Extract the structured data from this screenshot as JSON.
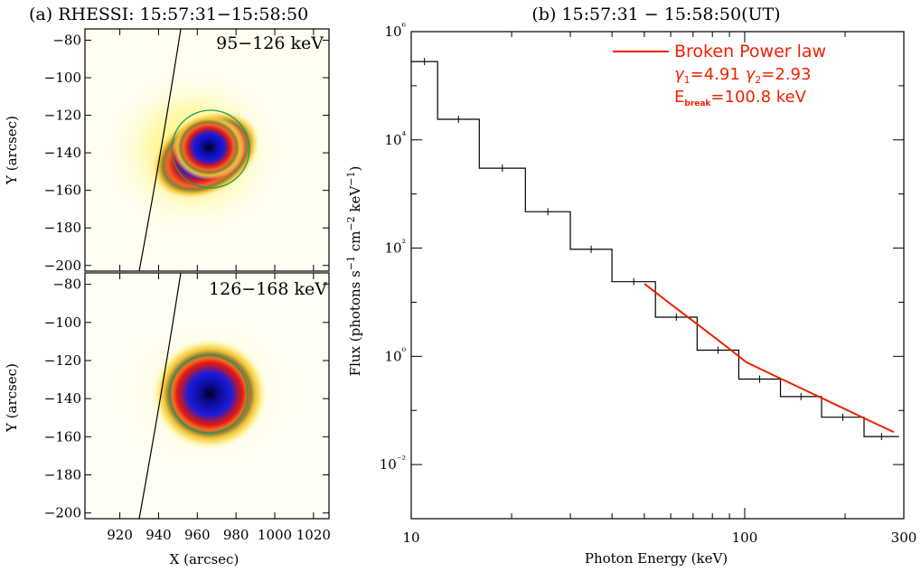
{
  "left": {
    "title": "(a) RHESSI: 15:57:31−15:58:50",
    "xlabel": "X (arcsec)",
    "xticks": [
      "920",
      "940",
      "960",
      "980",
      "1000",
      "1020"
    ],
    "xlim": [
      902,
      1028
    ],
    "ylim": [
      -203,
      -74
    ],
    "panels": [
      {
        "band": "95−126 keV",
        "ylabel": "Y (arcsec)",
        "yticks": [
          "−80",
          "−100",
          "−120",
          "−140",
          "−160",
          "−180",
          "−200"
        ]
      },
      {
        "band": "126−168 keV",
        "ylabel": "Y (arcsec)",
        "yticks": [
          "−80",
          "−100",
          "−120",
          "−140",
          "−160",
          "−180",
          "−200"
        ]
      }
    ]
  },
  "chart_data": {
    "type": "line",
    "title": "(b) 15:57:31 − 15:58:50(UT)",
    "xlabel": "Photon Energy (keV)",
    "ylabel": "Flux (photons s⁻¹ cm⁻² keV⁻¹)",
    "xscale": "log",
    "yscale": "log",
    "xlim": [
      10,
      300
    ],
    "ylim": [
      0.001,
      1000000
    ],
    "xtick_labels": [
      "10",
      "100",
      "300"
    ],
    "ytick_labels": [
      "10⁻²",
      "10⁰",
      "10²",
      "10⁴",
      "10⁶"
    ],
    "series": [
      {
        "style": "step",
        "color": "#000000",
        "bin_edges": [
          10,
          12,
          16,
          22,
          30,
          40,
          54,
          72,
          96,
          128,
          170,
          228,
          290
        ],
        "values": [
          280000,
          24000,
          3000,
          470,
          95,
          24,
          5.3,
          1.3,
          0.38,
          0.18,
          0.075,
          0.033
        ]
      },
      {
        "name": "Broken Power law",
        "color": "#ee2200",
        "x": [
          50,
          60,
          70,
          80,
          90,
          100.8,
          120,
          150,
          190,
          240,
          280
        ],
        "y": [
          22,
          9.2,
          4.5,
          2.4,
          1.37,
          0.79,
          0.47,
          0.245,
          0.123,
          0.0622,
          0.0398
        ]
      }
    ],
    "legend": {
      "entry": "Broken Power law",
      "gamma1": "4.91",
      "gamma2": "2.93",
      "ebreak": "100.8 keV"
    }
  }
}
